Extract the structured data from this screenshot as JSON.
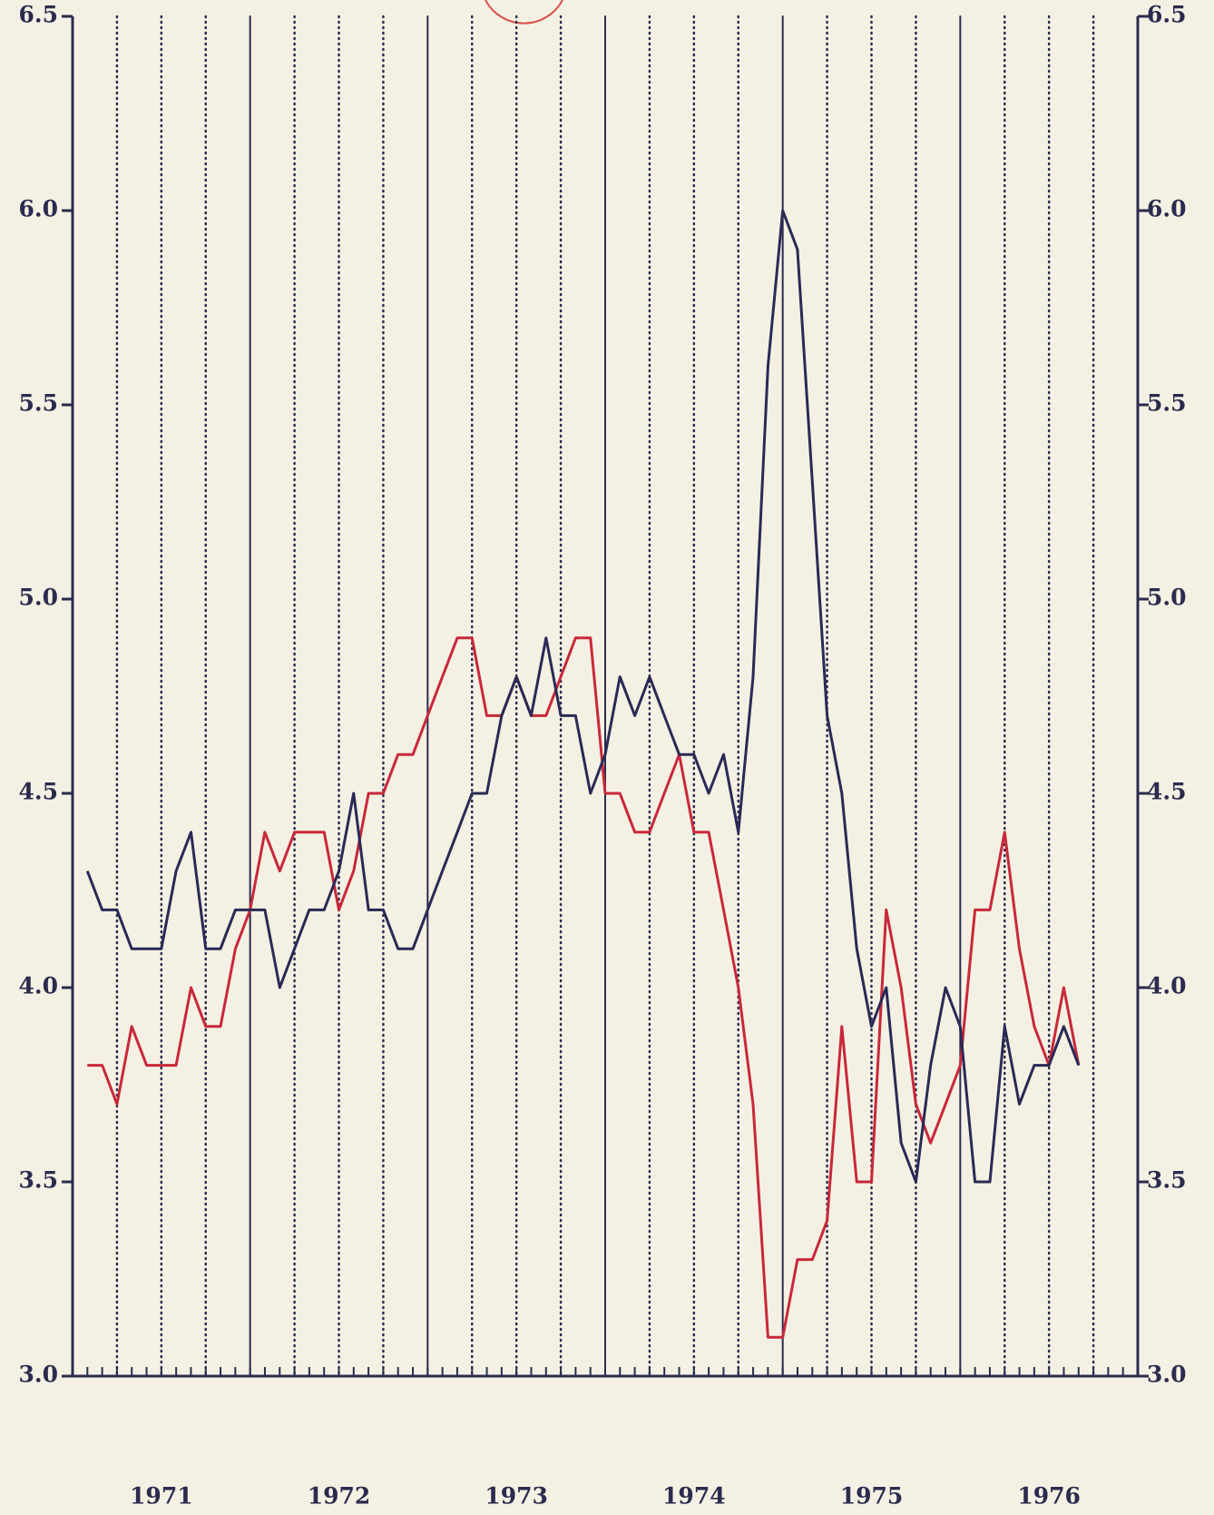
{
  "chart_data": {
    "type": "line",
    "x": [
      1971.083,
      1971.167,
      1971.25,
      1971.333,
      1971.417,
      1971.5,
      1971.583,
      1971.667,
      1971.75,
      1971.833,
      1971.917,
      1972,
      1972.083,
      1972.167,
      1972.25,
      1972.333,
      1972.417,
      1972.5,
      1972.583,
      1972.667,
      1972.75,
      1972.833,
      1972.917,
      1973,
      1973.083,
      1973.167,
      1973.25,
      1973.333,
      1973.417,
      1973.5,
      1973.583,
      1973.667,
      1973.75,
      1973.833,
      1973.917,
      1974,
      1974.083,
      1974.167,
      1974.25,
      1974.333,
      1974.417,
      1974.5,
      1974.583,
      1974.667,
      1974.75,
      1974.833,
      1974.917,
      1975,
      1975.083,
      1975.167,
      1975.25,
      1975.333,
      1975.417,
      1975.5,
      1975.583,
      1975.667,
      1975.75,
      1975.833,
      1975.917,
      1976,
      1976.083,
      1976.167,
      1976.25,
      1976.333,
      1976.417,
      1976.5,
      1976.583,
      1976.667
    ],
    "series": [
      {
        "color": "#c8283a",
        "values": [
          3.8,
          3.8,
          3.7,
          3.9,
          3.8,
          3.8,
          3.8,
          4.0,
          3.9,
          3.9,
          4.1,
          4.2,
          4.4,
          4.3,
          4.4,
          4.4,
          4.4,
          4.2,
          4.3,
          4.5,
          4.5,
          4.6,
          4.6,
          4.7,
          4.8,
          4.9,
          4.9,
          4.7,
          4.7,
          4.8,
          4.7,
          4.7,
          4.8,
          4.9,
          4.9,
          4.5,
          4.5,
          4.4,
          4.4,
          4.5,
          4.6,
          4.4,
          4.4,
          4.2,
          4.0,
          3.7,
          3.1,
          3.1,
          3.3,
          3.3,
          3.4,
          3.9,
          3.5,
          3.5,
          4.2,
          4.0,
          3.7,
          3.6,
          3.7,
          3.8,
          4.2,
          4.2,
          4.4,
          4.1,
          3.9,
          3.8,
          4.0,
          3.8
        ]
      },
      {
        "color": "#2a2a55",
        "values": [
          4.3,
          4.2,
          4.2,
          4.1,
          4.1,
          4.1,
          4.3,
          4.4,
          4.1,
          4.1,
          4.2,
          4.2,
          4.2,
          4.0,
          4.1,
          4.2,
          4.2,
          4.3,
          4.5,
          4.2,
          4.2,
          4.1,
          4.1,
          4.2,
          4.3,
          4.4,
          4.5,
          4.5,
          4.7,
          4.8,
          4.7,
          4.9,
          4.7,
          4.7,
          4.5,
          4.6,
          4.8,
          4.7,
          4.8,
          4.7,
          4.6,
          4.6,
          4.5,
          4.6,
          4.4,
          4.8,
          5.6,
          6.0,
          5.9,
          5.3,
          4.7,
          4.5,
          4.1,
          3.9,
          4.0,
          3.6,
          3.5,
          3.8,
          4.0,
          3.9,
          3.5,
          3.5,
          3.9,
          3.7,
          3.8,
          3.8,
          3.9,
          3.8
        ]
      }
    ],
    "xlim": [
      1971,
      1977
    ],
    "xticks": [
      {
        "value": 1971.5,
        "label": "1971"
      },
      {
        "value": 1972.5,
        "label": "1972"
      },
      {
        "value": 1973.5,
        "label": "1973"
      },
      {
        "value": 1974.5,
        "label": "1974"
      },
      {
        "value": 1975.5,
        "label": "1975"
      },
      {
        "value": 1976.5,
        "label": "1976"
      }
    ],
    "ylim": [
      3.0,
      6.5
    ],
    "yticks": [
      {
        "value": 3,
        "label": "3.0"
      },
      3.5,
      {
        "value": 4,
        "label": "4.0"
      },
      4.5,
      {
        "value": 5,
        "label": "5.0"
      },
      5.5,
      {
        "value": 6,
        "label": "6.0"
      },
      6.5
    ],
    "grid": true
  }
}
